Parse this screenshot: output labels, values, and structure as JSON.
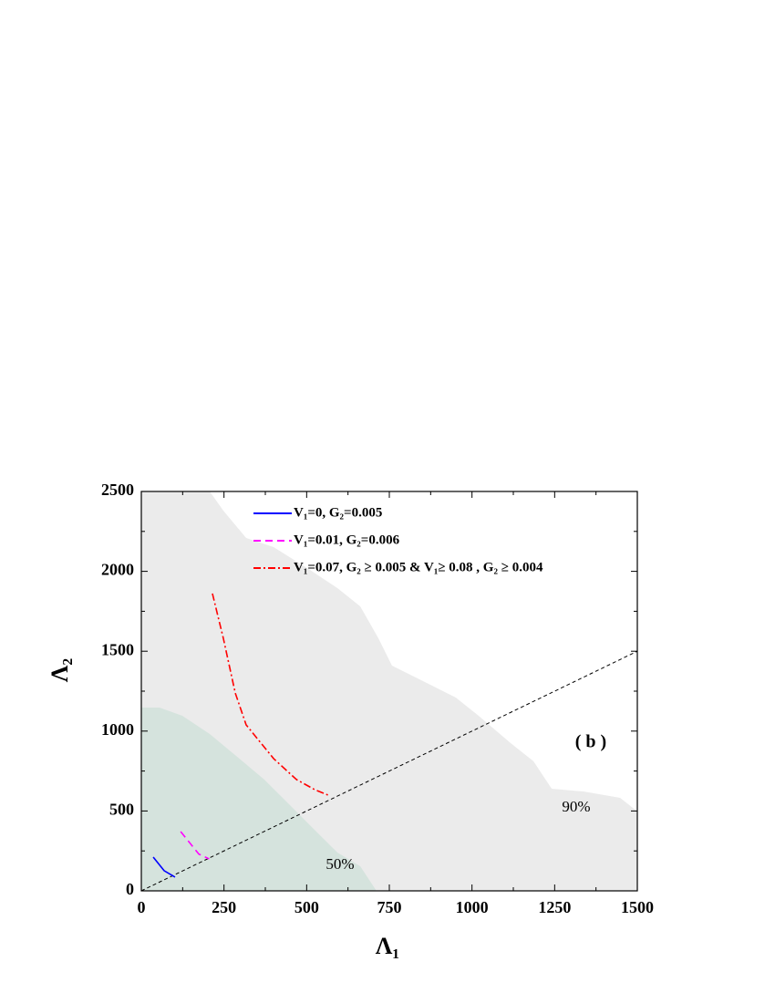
{
  "chart_data": {
    "type": "line",
    "xlabel": "Λ₁",
    "ylabel": "Λ₂",
    "xlim": [
      0,
      1500
    ],
    "ylim": [
      0,
      2500
    ],
    "xticks": [
      0,
      250,
      500,
      750,
      1000,
      1250,
      1500
    ],
    "yticks": [
      0,
      500,
      1000,
      1500,
      2000,
      2500
    ],
    "annotation": "( b )",
    "regions": [
      {
        "name": "90%",
        "color": "#ebebeb",
        "x": [
          0,
          207,
          248,
          317,
          400,
          510,
          593,
          662,
          717,
          758,
          841,
          951,
          1020,
          1117,
          1186,
          1241,
          1337,
          1448,
          1500,
          1500,
          0
        ],
        "y": [
          2500,
          2500,
          2380,
          2209,
          2152,
          2009,
          1895,
          1781,
          1581,
          1410,
          1324,
          1210,
          1096,
          925,
          811,
          639,
          622,
          582,
          497,
          0,
          0
        ]
      },
      {
        "name": "50%",
        "color": "#d5e3dd",
        "x": [
          0,
          55,
          124,
          207,
          290,
          372,
          455,
          524,
          593,
          662,
          711,
          0
        ],
        "y": [
          1147,
          1147,
          1096,
          982,
          839,
          696,
          525,
          382,
          240,
          154,
          0,
          0
        ]
      }
    ],
    "reference_line": {
      "x": [
        0,
        1500
      ],
      "y": [
        0,
        1500
      ],
      "color": "#000000"
    },
    "series": [
      {
        "name": "V₁=0, G₂=0.005",
        "color": "#0000ff",
        "dash": "solid",
        "x": [
          36,
          69,
          102
        ],
        "y": [
          211,
          126,
          86
        ]
      },
      {
        "name": "V₁=0.01, G₂=0.006",
        "color": "#ff00ff",
        "dash": "dashed",
        "x": [
          119,
          174,
          205
        ],
        "y": [
          371,
          230,
          200
        ]
      },
      {
        "name": "V₁=0.07, G₂ ≥ 0.005 & V₁≥ 0.08 , G₂ ≥ 0.004",
        "color": "#ff0000",
        "dash": "dashdot",
        "x": [
          215,
          248,
          284,
          317,
          400,
          469,
          524,
          571
        ],
        "y": [
          1861,
          1581,
          1239,
          1039,
          828,
          697,
          634,
          594
        ]
      }
    ]
  }
}
